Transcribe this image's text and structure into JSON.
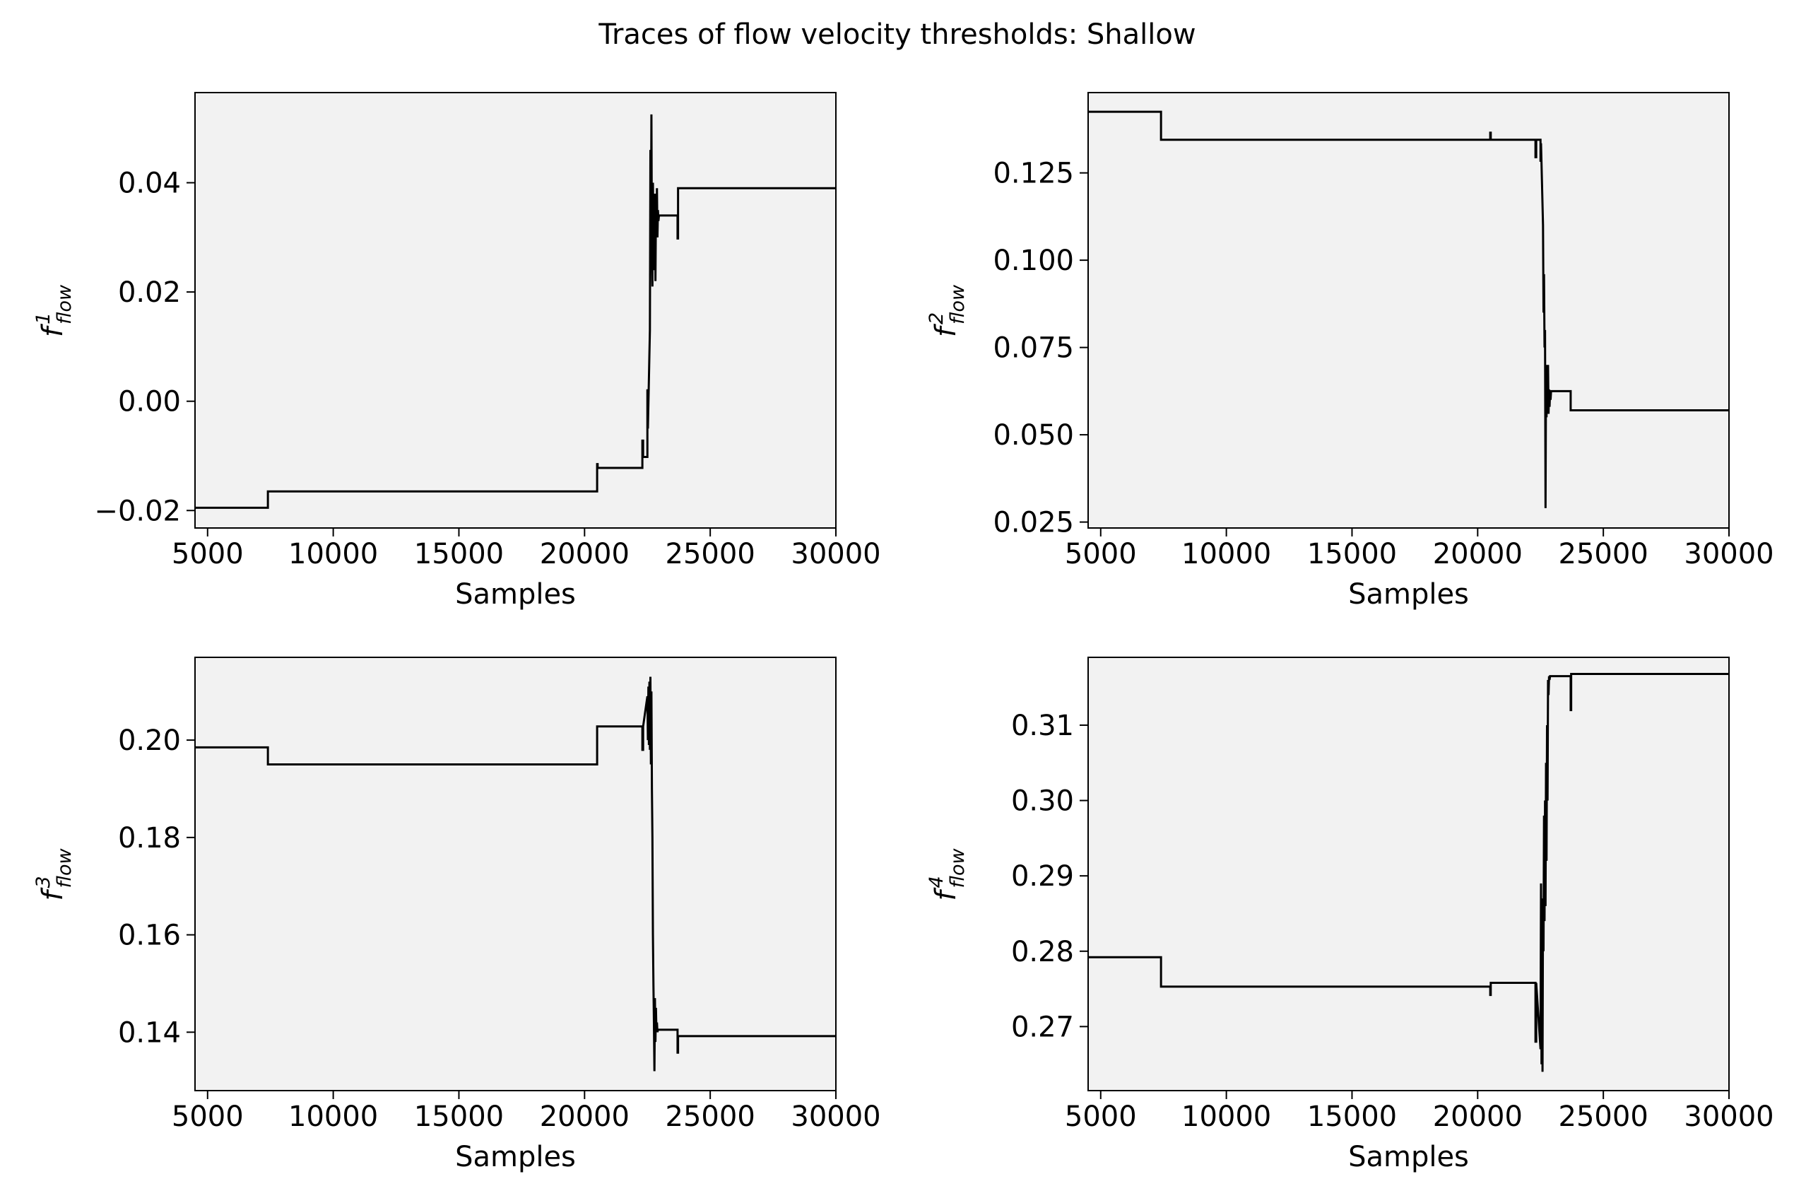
{
  "figure": {
    "title": "Traces of flow velocity thresholds: Shallow",
    "colors": {
      "plot_background": "#f2f2f2",
      "trace": "#000000",
      "axes": "#000000"
    }
  },
  "chart_data": [
    {
      "type": "line",
      "ylabel": {
        "base": "f",
        "superscript": "1",
        "subscript": "flow"
      },
      "xlabel": "Samples",
      "xlim": [
        4500,
        30000
      ],
      "ylim": [
        -0.0232,
        0.0565
      ],
      "xticks": [
        5000,
        10000,
        15000,
        20000,
        25000,
        30000
      ],
      "xtick_labels": [
        "5000",
        "10000",
        "15000",
        "20000",
        "25000",
        "30000"
      ],
      "yticks": [
        -0.02,
        0.0,
        0.02,
        0.04
      ],
      "ytick_labels": [
        "−0.02",
        "0.00",
        "0.02",
        "0.04"
      ],
      "grid": false,
      "x": [
        4500,
        7400,
        7400,
        20500,
        20500,
        20520,
        20520,
        22300,
        22300,
        22330,
        22330,
        22500,
        22500,
        22520,
        22520,
        22600,
        22620,
        22640,
        22660,
        22680,
        22700,
        22720,
        22740,
        22760,
        22780,
        22800,
        22820,
        22840,
        22860,
        22880,
        22900,
        22920,
        22940,
        22960,
        22980,
        23000,
        23700,
        23700,
        23720,
        23720,
        30000
      ],
      "y": [
        -0.0195,
        -0.0195,
        -0.0165,
        -0.0165,
        -0.0115,
        -0.0115,
        -0.0122,
        -0.0122,
        -0.0072,
        -0.0072,
        -0.0102,
        -0.0102,
        0.002,
        0.002,
        -0.005,
        0.013,
        0.046,
        0.025,
        0.0525,
        0.028,
        0.021,
        0.04,
        0.032,
        0.036,
        0.024,
        0.038,
        0.022,
        0.035,
        0.03,
        0.039,
        0.03,
        0.035,
        0.033,
        0.034,
        0.034,
        0.034,
        0.034,
        0.0298,
        0.0298,
        0.039,
        0.039
      ]
    },
    {
      "type": "line",
      "ylabel": {
        "base": "f",
        "superscript": "2",
        "subscript": "flow"
      },
      "xlabel": "Samples",
      "xlim": [
        4500,
        30000
      ],
      "ylim": [
        0.0233,
        0.148
      ],
      "xticks": [
        5000,
        10000,
        15000,
        20000,
        25000,
        30000
      ],
      "xtick_labels": [
        "5000",
        "10000",
        "15000",
        "20000",
        "25000",
        "30000"
      ],
      "yticks": [
        0.025,
        0.05,
        0.075,
        0.1,
        0.125
      ],
      "ytick_labels": [
        "0.025",
        "0.050",
        "0.075",
        "0.100",
        "0.125"
      ],
      "grid": false,
      "x": [
        4500,
        7400,
        7400,
        20500,
        20500,
        20520,
        20520,
        22300,
        22300,
        22330,
        22330,
        22500,
        22500,
        22520,
        22520,
        22600,
        22620,
        22640,
        22660,
        22680,
        22700,
        22720,
        22740,
        22760,
        22780,
        22800,
        22820,
        22840,
        22860,
        22880,
        22900,
        22920,
        22940,
        22960,
        22980,
        23000,
        23700,
        23700,
        30000
      ],
      "y": [
        0.1425,
        0.1425,
        0.1345,
        0.1345,
        0.1365,
        0.1365,
        0.1345,
        0.1345,
        0.1295,
        0.1295,
        0.1345,
        0.1345,
        0.1285,
        0.1285,
        0.1335,
        0.11,
        0.085,
        0.096,
        0.075,
        0.08,
        0.029,
        0.07,
        0.055,
        0.068,
        0.057,
        0.07,
        0.056,
        0.063,
        0.058,
        0.062,
        0.06,
        0.0625,
        0.0625,
        0.0625,
        0.0625,
        0.0625,
        0.0625,
        0.057,
        0.057
      ]
    },
    {
      "type": "line",
      "ylabel": {
        "base": "f",
        "superscript": "3",
        "subscript": "flow"
      },
      "xlabel": "Samples",
      "xlim": [
        4500,
        30000
      ],
      "ylim": [
        0.128,
        0.217
      ],
      "xticks": [
        5000,
        10000,
        15000,
        20000,
        25000,
        30000
      ],
      "xtick_labels": [
        "5000",
        "10000",
        "15000",
        "20000",
        "25000",
        "30000"
      ],
      "yticks": [
        0.14,
        0.16,
        0.18,
        0.2
      ],
      "ytick_labels": [
        "0.14",
        "0.16",
        "0.18",
        "0.20"
      ],
      "grid": false,
      "x": [
        4500,
        7400,
        7400,
        20500,
        20500,
        22300,
        22300,
        22330,
        22330,
        22500,
        22520,
        22540,
        22560,
        22580,
        22600,
        22620,
        22640,
        22660,
        22680,
        22700,
        22720,
        22740,
        22760,
        22780,
        22800,
        22820,
        22840,
        22860,
        22880,
        22900,
        22920,
        22940,
        22960,
        23000,
        23700,
        23700,
        23720,
        23720,
        30000
      ],
      "y": [
        0.1985,
        0.1985,
        0.195,
        0.195,
        0.2028,
        0.2028,
        0.198,
        0.198,
        0.2028,
        0.209,
        0.2,
        0.211,
        0.199,
        0.212,
        0.198,
        0.213,
        0.195,
        0.21,
        0.19,
        0.18,
        0.16,
        0.15,
        0.142,
        0.132,
        0.147,
        0.138,
        0.145,
        0.14,
        0.142,
        0.14,
        0.1405,
        0.1405,
        0.1405,
        0.1405,
        0.1405,
        0.1358,
        0.1358,
        0.1392,
        0.1392
      ]
    },
    {
      "type": "line",
      "ylabel": {
        "base": "f",
        "superscript": "4",
        "subscript": "flow"
      },
      "xlabel": "Samples",
      "xlim": [
        4500,
        30000
      ],
      "ylim": [
        0.2615,
        0.319
      ],
      "xticks": [
        5000,
        10000,
        15000,
        20000,
        25000,
        30000
      ],
      "xtick_labels": [
        "5000",
        "10000",
        "15000",
        "20000",
        "25000",
        "30000"
      ],
      "yticks": [
        0.27,
        0.28,
        0.29,
        0.3,
        0.31
      ],
      "ytick_labels": [
        "0.27",
        "0.28",
        "0.29",
        "0.30",
        "0.31"
      ],
      "grid": false,
      "x": [
        4500,
        7400,
        7400,
        20500,
        20500,
        20520,
        20520,
        22300,
        22300,
        22330,
        22330,
        22500,
        22520,
        22540,
        22560,
        22580,
        22600,
        22620,
        22640,
        22660,
        22680,
        22700,
        22720,
        22740,
        22760,
        22780,
        22800,
        22820,
        22840,
        22860,
        22880,
        22900,
        22920,
        23000,
        23700,
        23700,
        23720,
        23720,
        30000
      ],
      "y": [
        0.2792,
        0.2792,
        0.2753,
        0.2753,
        0.2742,
        0.2742,
        0.2758,
        0.2758,
        0.268,
        0.268,
        0.2758,
        0.267,
        0.289,
        0.265,
        0.285,
        0.264,
        0.287,
        0.28,
        0.298,
        0.284,
        0.3,
        0.286,
        0.305,
        0.292,
        0.31,
        0.3,
        0.316,
        0.314,
        0.3165,
        0.316,
        0.3165,
        0.3165,
        0.3165,
        0.3165,
        0.3165,
        0.312,
        0.312,
        0.3168,
        0.3168
      ]
    }
  ]
}
